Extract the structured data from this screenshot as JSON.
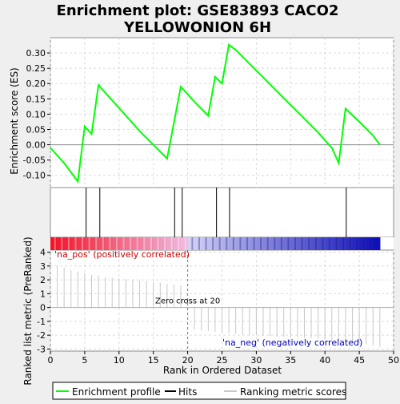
{
  "chart_data": {
    "type": "line",
    "title_line1": "Enrichment plot: GSE83893 CACO2",
    "title_line2": "YELLOWONION 6H",
    "ylabel_es": "Enrichment score (ES)",
    "ylabel_rank": "Ranked list metric (PreRanked)",
    "xlabel": "Rank in Ordered Dataset",
    "xlim": [
      0,
      50
    ],
    "es_ylim": [
      -0.14,
      0.35
    ],
    "rank_ylim": [
      -3.15,
      4.15
    ],
    "x_ticks": [
      0,
      5,
      10,
      15,
      20,
      25,
      30,
      35,
      40,
      45,
      50
    ],
    "x_tick_labels": [
      "0",
      "5",
      "10",
      "15",
      "20",
      "25",
      "30",
      "35",
      "40",
      "45",
      "50"
    ],
    "es_ticks": [
      -0.1,
      -0.05,
      0.0,
      0.05,
      0.1,
      0.15,
      0.2,
      0.25,
      0.3
    ],
    "es_tick_labels": [
      "-0.10",
      "-0.05",
      "0.00",
      "0.05",
      "0.10",
      "0.15",
      "0.20",
      "0.25",
      "0.30"
    ],
    "rank_ticks": [
      -3,
      -2,
      -1,
      0,
      1,
      2,
      3,
      4
    ],
    "rank_tick_labels": [
      "-3",
      "-2",
      "-1",
      "0",
      "1",
      "2",
      "3",
      "4"
    ],
    "grid": true,
    "enrichment_profile": {
      "name": "Enrichment profile",
      "color": "#00ff00",
      "x": [
        0,
        2,
        4,
        5,
        6,
        7,
        9,
        11,
        13,
        15,
        17,
        19,
        21,
        23,
        24,
        25,
        26,
        27,
        29,
        31,
        33,
        35,
        37,
        39,
        41,
        42,
        43,
        45,
        47,
        48
      ],
      "y": [
        -0.01,
        -0.06,
        -0.12,
        0.06,
        0.035,
        0.195,
        0.145,
        0.095,
        0.045,
        0.0,
        -0.045,
        0.19,
        0.14,
        0.095,
        0.222,
        0.2,
        0.327,
        0.31,
        0.265,
        0.22,
        0.175,
        0.13,
        0.085,
        0.04,
        -0.01,
        -0.06,
        0.118,
        0.075,
        0.03,
        0.0
      ]
    },
    "hits": {
      "name": "Hits",
      "color": "#000000",
      "x": [
        5.2,
        7.2,
        18.1,
        19.2,
        24.2,
        26.1,
        43.1
      ]
    },
    "ranking_metric": {
      "name": "Ranking metric scores",
      "color": "#c8c8c8",
      "x": [
        1,
        2,
        3,
        4,
        5,
        6,
        7,
        8,
        9,
        10,
        11,
        12,
        13,
        14,
        15,
        16,
        17,
        18,
        19,
        21,
        22,
        23,
        24,
        25,
        26,
        27,
        28,
        29,
        30,
        31,
        32,
        33,
        34,
        35,
        36,
        37,
        38,
        39,
        40,
        41,
        42,
        43,
        44,
        45,
        46,
        47,
        48
      ],
      "values": [
        3.0,
        2.9,
        2.7,
        2.6,
        2.5,
        2.35,
        2.3,
        2.2,
        2.15,
        2.1,
        2.05,
        2.0,
        1.95,
        1.9,
        1.85,
        1.8,
        1.7,
        1.65,
        1.6,
        -1.6,
        -1.65,
        -1.7,
        -1.75,
        -1.8,
        -1.85,
        -1.9,
        -1.95,
        -2.0,
        -2.0,
        -2.05,
        -2.05,
        -2.1,
        -2.1,
        -2.15,
        -2.15,
        -2.2,
        -2.2,
        -2.25,
        -2.3,
        -2.35,
        -2.4,
        -2.45,
        -2.5,
        -2.55,
        -2.65,
        -2.75,
        -2.85
      ]
    },
    "zero_cross": {
      "x": 20,
      "label": "Zero cross at 20"
    },
    "pos_label": "'na_pos' (positively correlated)",
    "neg_label": "'na_neg' (negatively correlated)",
    "pos_label_color": "#cc0000",
    "neg_label_color": "#0000bb",
    "legend_items": [
      "Enrichment profile",
      "Hits",
      "Ranking metric scores"
    ],
    "legend_position": "bottom"
  }
}
